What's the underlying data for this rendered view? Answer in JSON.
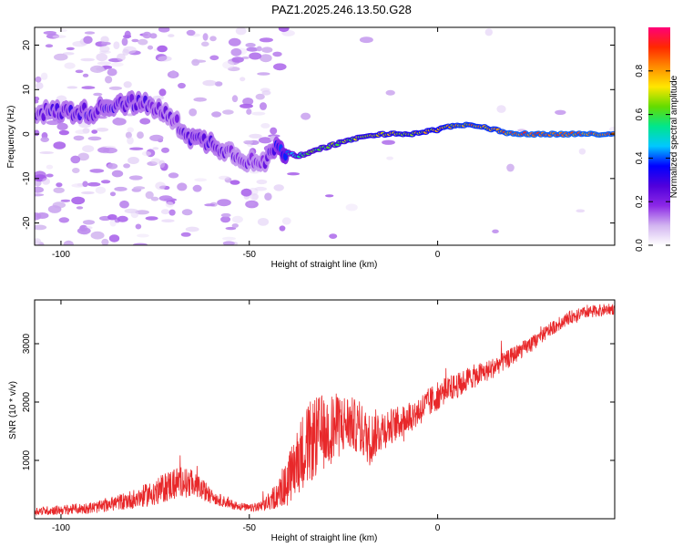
{
  "title": "PAZ1.2025.246.13.50.G28",
  "chart_data": [
    {
      "type": "heatmap",
      "xlabel": "Height of straight line (km)",
      "ylabel": "Frequency (Hz)",
      "xlim": [
        -107,
        47
      ],
      "ylim": [
        -25,
        24
      ],
      "xticks": [
        -100,
        -50,
        0
      ],
      "yticks": [
        -20,
        -10,
        0,
        10,
        20
      ],
      "colorbar": {
        "label": "Normalized spectral amplitude",
        "range": [
          0,
          1
        ],
        "ticks": [
          0.0,
          0.2,
          0.4,
          0.6,
          0.8
        ],
        "tick_labels": [
          "0.0",
          "0.2",
          "0.4",
          "0.6",
          "0.8"
        ],
        "colormap": [
          "#ffffff",
          "#d2b4f0",
          "#8c28e6",
          "#5000dc",
          "#0000ff",
          "#00c8ff",
          "#00e68c",
          "#64dc00",
          "#ffe600",
          "#ff8c00",
          "#ff2800",
          "#ff0078"
        ]
      },
      "ridge": [
        {
          "x": -107,
          "f": 5,
          "amp": 0.25
        },
        {
          "x": -100,
          "f": 5,
          "amp": 0.3
        },
        {
          "x": -92,
          "f": 5,
          "amp": 0.3
        },
        {
          "x": -85,
          "f": 7,
          "amp": 0.3
        },
        {
          "x": -80,
          "f": 7,
          "amp": 0.3
        },
        {
          "x": -75,
          "f": 6,
          "amp": 0.28
        },
        {
          "x": -70,
          "f": 3,
          "amp": 0.25
        },
        {
          "x": -65,
          "f": -1,
          "amp": 0.3
        },
        {
          "x": -60,
          "f": -2,
          "amp": 0.3
        },
        {
          "x": -55,
          "f": -4,
          "amp": 0.25
        },
        {
          "x": -50,
          "f": -6,
          "amp": 0.25
        },
        {
          "x": -46,
          "f": -7,
          "amp": 0.25
        },
        {
          "x": -44,
          "f": -3,
          "amp": 0.3
        },
        {
          "x": -40,
          "f": -4,
          "amp": 0.5
        },
        {
          "x": -37,
          "f": -5,
          "amp": 0.6
        },
        {
          "x": -30,
          "f": -3,
          "amp": 0.65
        },
        {
          "x": -22,
          "f": -1,
          "amp": 0.7
        },
        {
          "x": -15,
          "f": 0,
          "amp": 0.75
        },
        {
          "x": -7,
          "f": 0,
          "amp": 0.75
        },
        {
          "x": 0,
          "f": 1,
          "amp": 0.8
        },
        {
          "x": 5,
          "f": 2,
          "amp": 0.85
        },
        {
          "x": 10,
          "f": 2,
          "amp": 0.85
        },
        {
          "x": 15,
          "f": 1,
          "amp": 0.85
        },
        {
          "x": 20,
          "f": 0,
          "amp": 0.9
        },
        {
          "x": 30,
          "f": 0,
          "amp": 0.9
        },
        {
          "x": 40,
          "f": 0,
          "amp": 0.9
        },
        {
          "x": 47,
          "f": 0,
          "amp": 0.9
        }
      ]
    },
    {
      "type": "line",
      "xlabel": "Height of straight line (km)",
      "ylabel": "SNR (10 * v/v)",
      "xlim": [
        -107,
        47
      ],
      "ylim": [
        0,
        3750
      ],
      "xticks": [
        -100,
        -50,
        0
      ],
      "yticks": [
        1000,
        2000,
        3000
      ],
      "color": "#e8282a",
      "series": [
        {
          "x": [
            -107,
            -100,
            -95,
            -90,
            -85,
            -80,
            -75,
            -72,
            -70,
            -68,
            -65,
            -62,
            -60,
            -55,
            -50,
            -47,
            -45,
            -42,
            -40,
            -38,
            -36,
            -34,
            -32,
            -30,
            -28,
            -26,
            -24,
            -22,
            -20,
            -18,
            -16,
            -14,
            -12,
            -10,
            -8,
            -6,
            -4,
            -2,
            0,
            2,
            4,
            6,
            8,
            10,
            12,
            14,
            16,
            18,
            20,
            25,
            30,
            35,
            40,
            47
          ],
          "y": [
            130,
            150,
            170,
            200,
            280,
            350,
            450,
            550,
            600,
            650,
            600,
            480,
            380,
            250,
            180,
            200,
            280,
            450,
            600,
            900,
            1150,
            1300,
            1400,
            1500,
            1550,
            1600,
            1650,
            1600,
            1500,
            1350,
            1500,
            1550,
            1600,
            1650,
            1750,
            1800,
            1900,
            2000,
            2100,
            2200,
            2250,
            2300,
            2400,
            2450,
            2500,
            2550,
            2650,
            2700,
            2800,
            3000,
            3250,
            3450,
            3550,
            3600
          ],
          "noise": [
            70,
            80,
            90,
            100,
            130,
            170,
            220,
            260,
            280,
            260,
            230,
            170,
            120,
            80,
            60,
            90,
            150,
            250,
            400,
            550,
            650,
            700,
            700,
            650,
            600,
            550,
            500,
            450,
            450,
            450,
            400,
            350,
            300,
            280,
            280,
            270,
            260,
            260,
            240,
            230,
            220,
            210,
            200,
            200,
            190,
            180,
            170,
            160,
            150,
            130,
            120,
            110,
            100,
            100
          ]
        }
      ]
    }
  ]
}
